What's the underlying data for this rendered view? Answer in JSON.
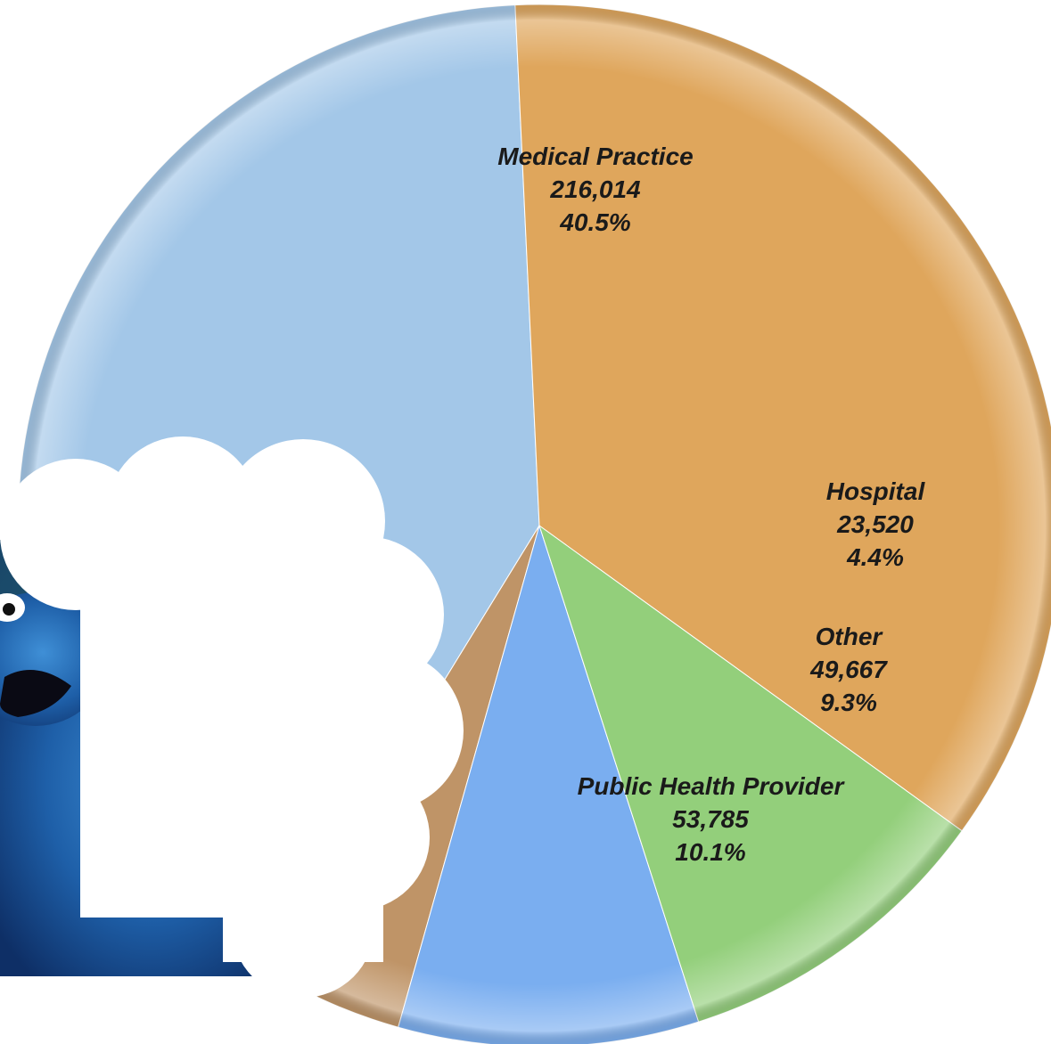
{
  "chart_data": {
    "type": "pie",
    "slices": [
      {
        "name": "Medical Practice",
        "value": 216014,
        "percent": "40.5%",
        "color": "#a3c7e8"
      },
      {
        "name": "Hospital",
        "value": 23520,
        "percent": "4.4%",
        "color": "#bf9467"
      },
      {
        "name": "Other",
        "value": 49667,
        "percent": "9.3%",
        "color": "#7aaef0"
      },
      {
        "name": "Public Health Provider",
        "value": 53785,
        "percent": "10.1%",
        "color": "#93cf7b"
      },
      {
        "name": "",
        "value": null,
        "percent": "",
        "color": "#dfa65c"
      }
    ],
    "value_labels": {
      "medical_practice": "216,014",
      "hospital": "23,520",
      "other": "49,667",
      "public_health_provider": "53,785"
    },
    "fractions": [
      0.405,
      0.044,
      0.093,
      0.101,
      0.357
    ],
    "legend": "none"
  },
  "overlay": {
    "icon": "cookie-monster-photo",
    "sticker": "cloud-shape-icon",
    "sticker_color": "#ffffff"
  }
}
